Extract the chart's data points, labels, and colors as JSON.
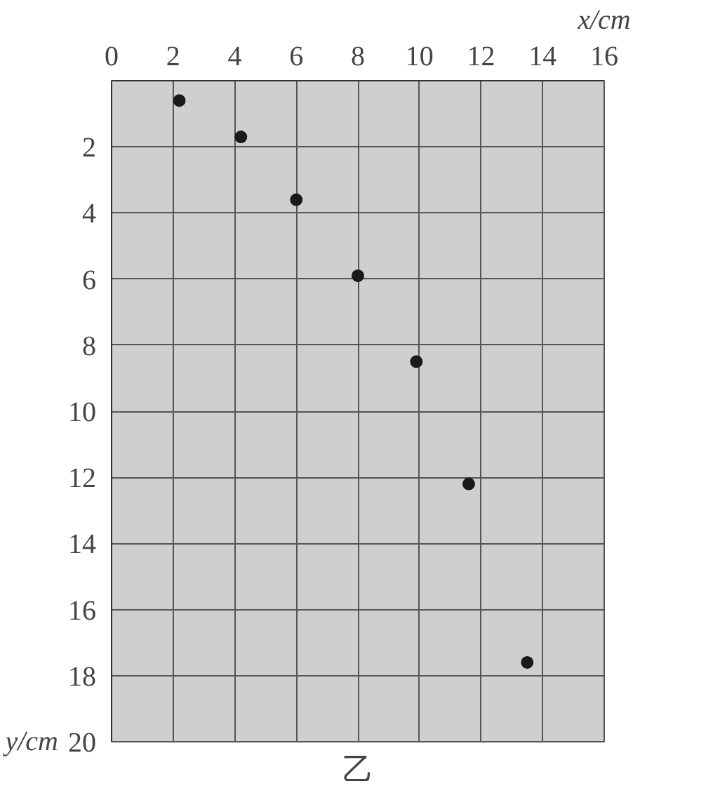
{
  "chart_data": {
    "type": "scatter",
    "xlabel": "x/cm",
    "ylabel": "y/cm",
    "annotations": [
      "乙"
    ],
    "x": [
      2.2,
      4.2,
      6.0,
      8.0,
      9.9,
      11.6,
      13.5
    ],
    "series": [
      {
        "color": "#1a1a1a",
        "values": [
          0.6,
          1.7,
          3.6,
          5.9,
          8.5,
          12.2,
          17.6
        ]
      }
    ],
    "xlim": [
      0,
      16
    ],
    "ylim": [
      20,
      0
    ],
    "xticks": [
      0,
      2,
      4,
      6,
      8,
      10,
      12,
      14,
      16
    ],
    "yticks": [
      2,
      4,
      6,
      8,
      10,
      12,
      14,
      16,
      18,
      20
    ],
    "grid": true,
    "marker": "circle"
  }
}
